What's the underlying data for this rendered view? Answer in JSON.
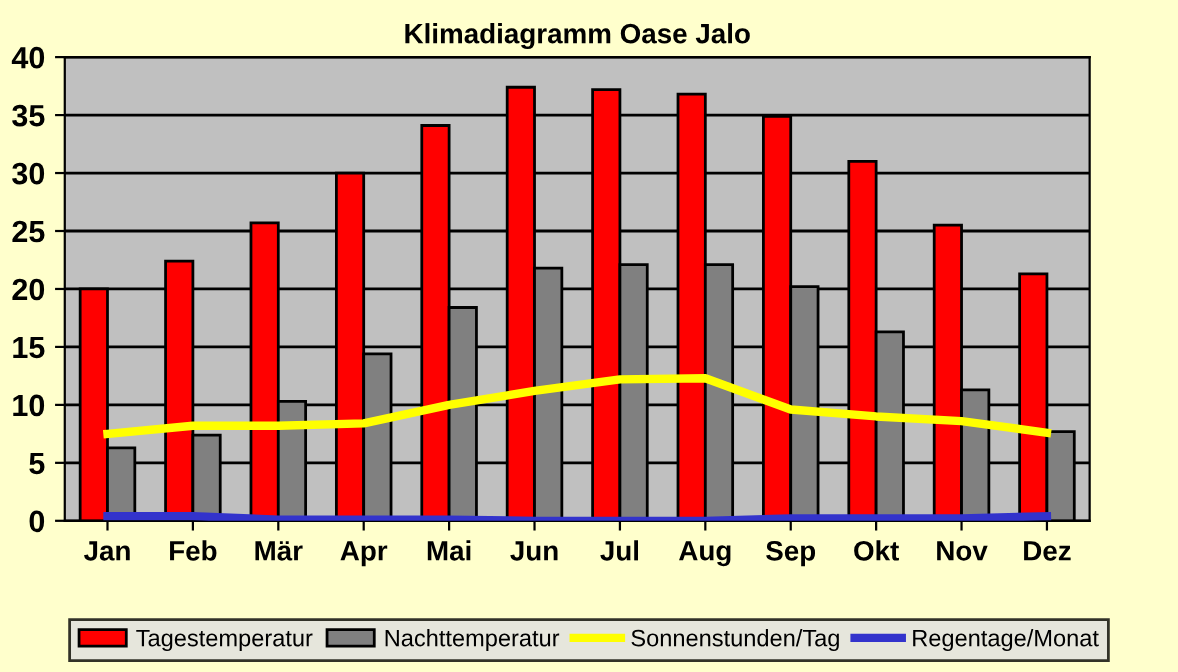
{
  "chart_data": {
    "type": "bar",
    "title": "Klimadiagramm Oase Jalo",
    "categories": [
      "Jan",
      "Feb",
      "Mär",
      "Apr",
      "Mai",
      "Jun",
      "Jul",
      "Aug",
      "Sep",
      "Okt",
      "Nov",
      "Dez"
    ],
    "series": [
      {
        "name": "Tagestemperatur",
        "color": "#ff0000",
        "values": [
          20,
          22.4,
          25.7,
          30,
          34.1,
          37.4,
          37.2,
          36.8,
          34.9,
          31.0,
          25.5,
          21.3
        ]
      },
      {
        "name": "Nachttemperatur",
        "color": "#808080",
        "values": [
          6.3,
          7.4,
          10.3,
          14.4,
          18.4,
          21.8,
          22.1,
          22.1,
          20.2,
          16.3,
          11.3,
          7.7
        ]
      },
      {
        "name": "Sonnenstunden/Tag",
        "type": "line",
        "color": "#ffff00",
        "values": [
          7.5,
          8.2,
          8.2,
          8.4,
          10.0,
          11.2,
          12.2,
          12.3,
          9.6,
          9.0,
          8.6,
          7.6
        ]
      },
      {
        "name": "Regentage/Monat",
        "type": "line",
        "color": "#3333cc",
        "values": [
          0.4,
          0.4,
          0.1,
          0.1,
          0.1,
          0.0,
          0.0,
          0.0,
          0.2,
          0.2,
          0.2,
          0.4
        ]
      }
    ],
    "ylim": [
      0,
      40
    ],
    "yticks": [
      0,
      5,
      10,
      15,
      20,
      25,
      30,
      35,
      40
    ],
    "grid": "y",
    "legend": "bottom"
  }
}
